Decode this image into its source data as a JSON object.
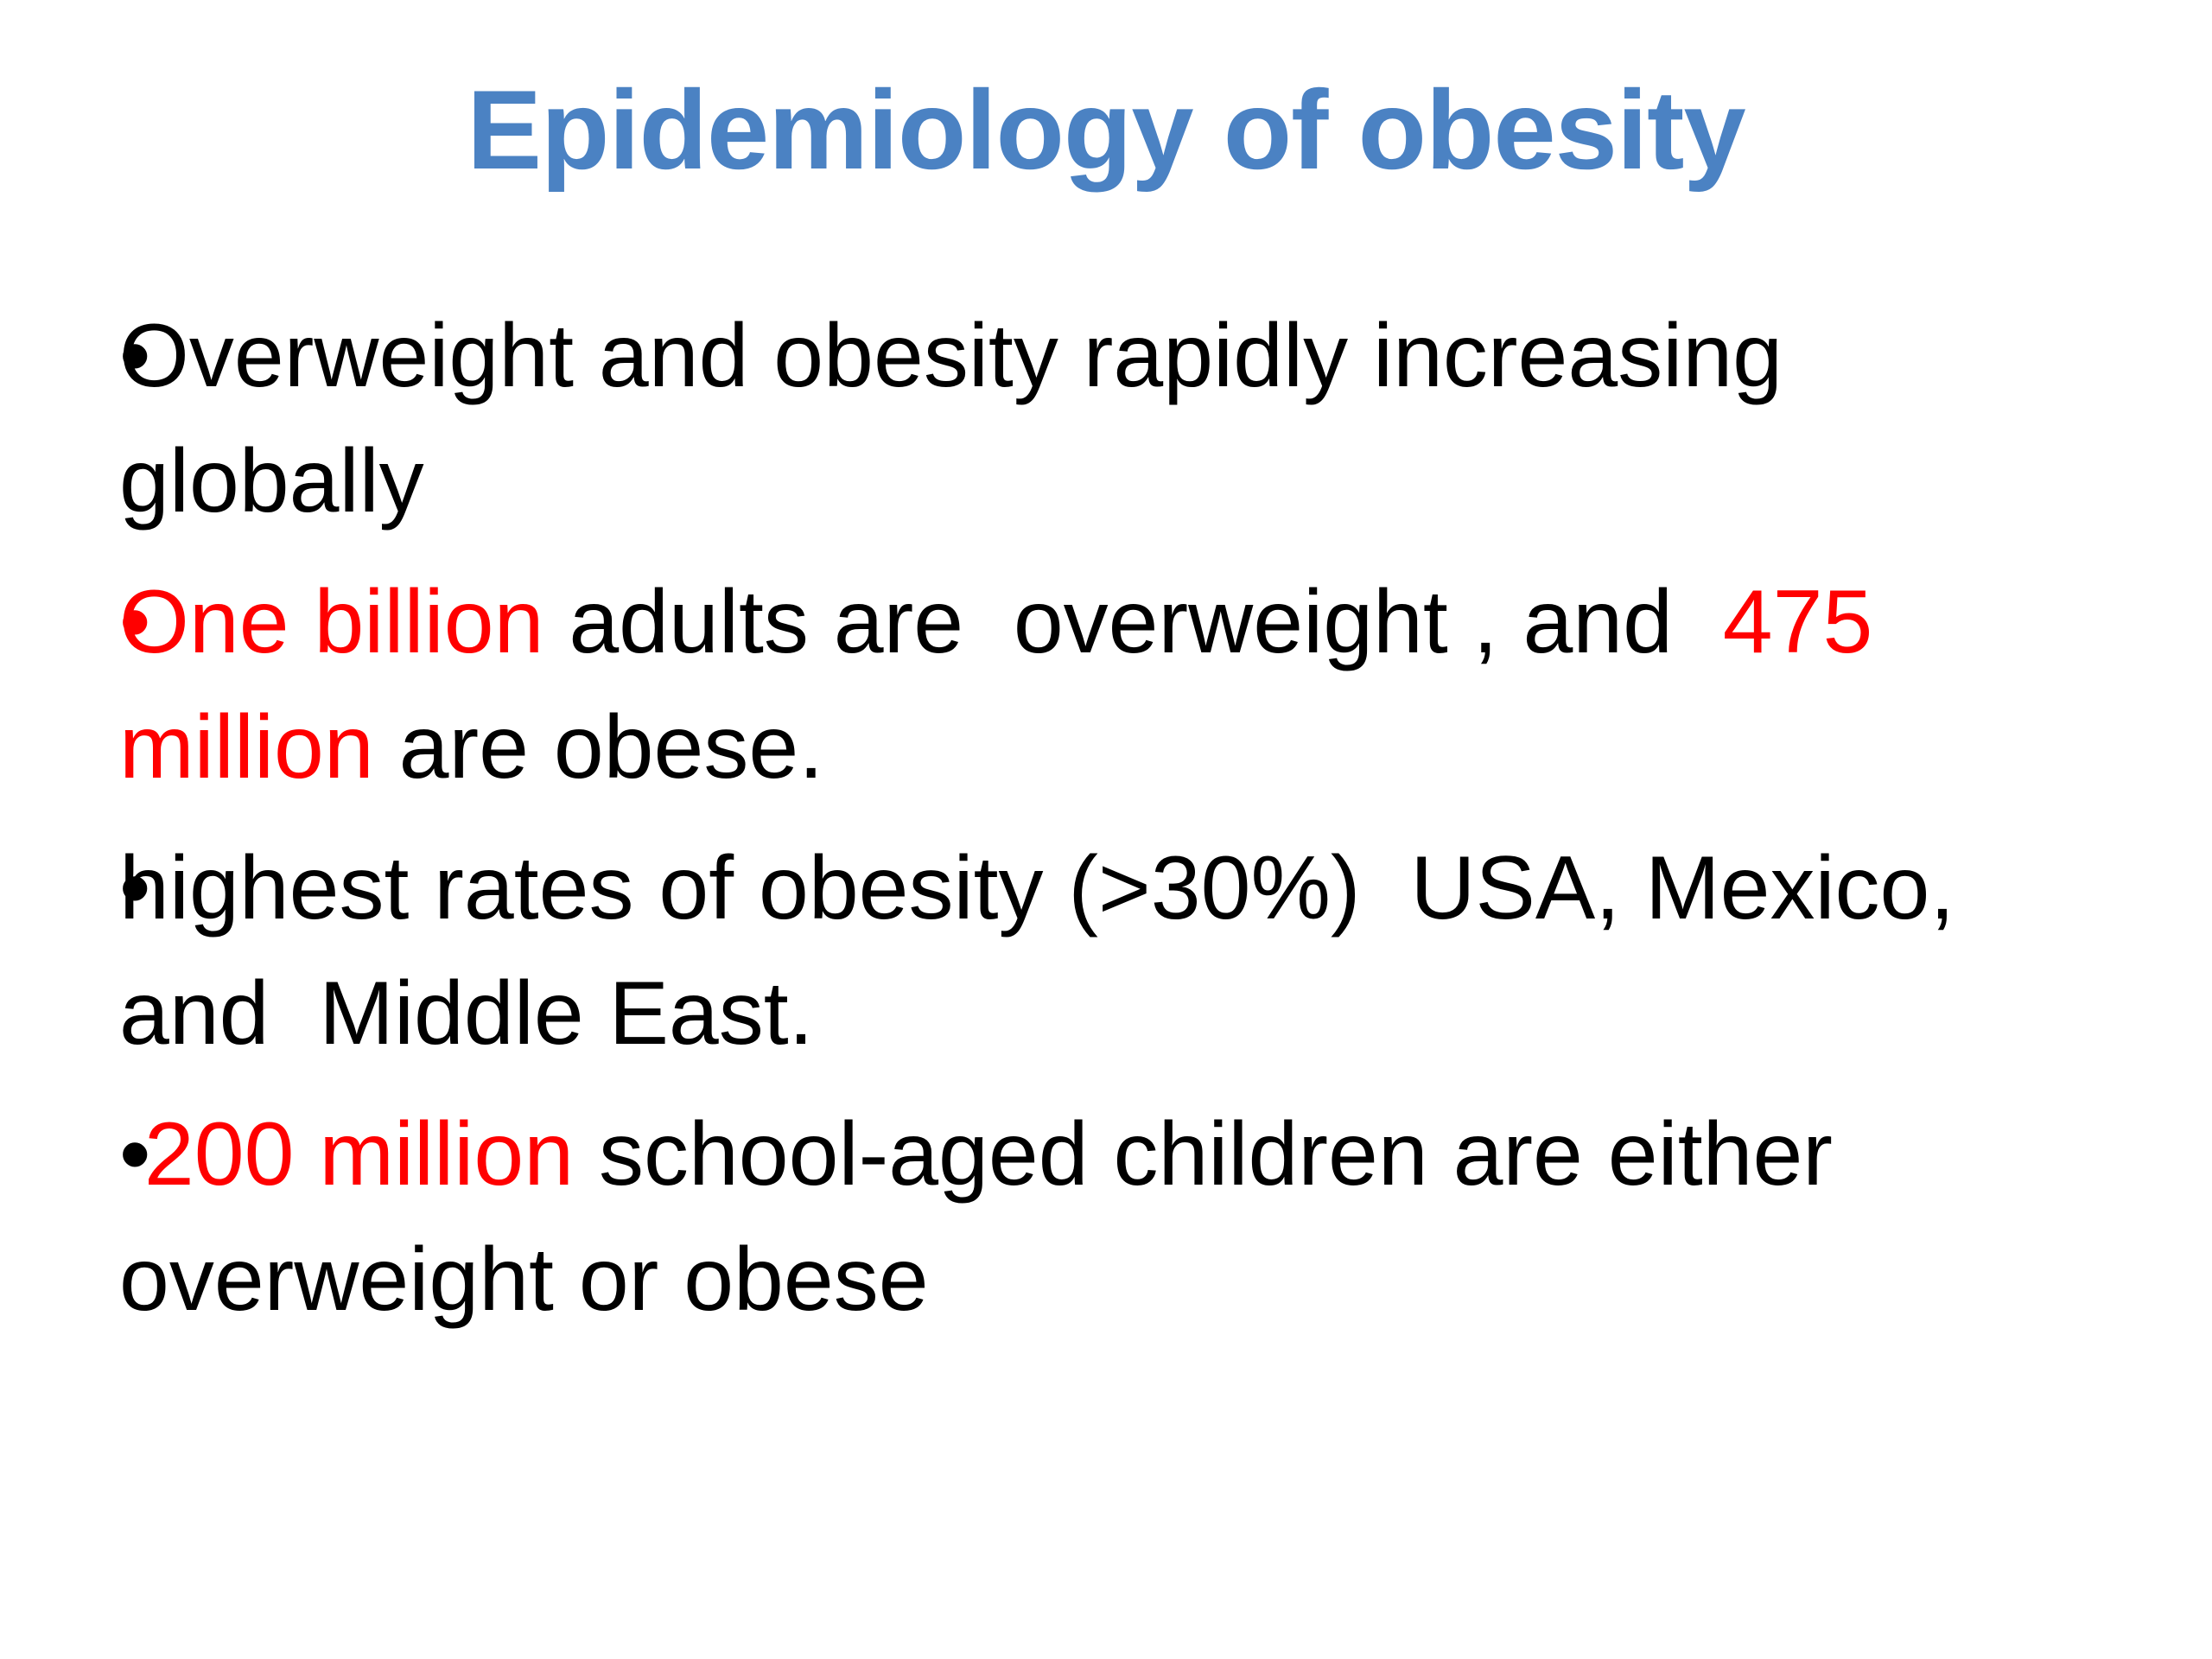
{
  "slide": {
    "title": "Epidemiology of obesity",
    "bullets": [
      {
        "marker": "•",
        "marker_emphasis": false,
        "lines": [
          [
            {
              "text": "Overweight and obesity rapidly increasing",
              "emphasis": false
            }
          ],
          [
            {
              "text": "globally",
              "emphasis": false
            }
          ]
        ]
      },
      {
        "marker": "•",
        "marker_emphasis": true,
        "lines": [
          [
            {
              "text": "One billion",
              "emphasis": true
            },
            {
              "text": " adults are  overweight , and  ",
              "emphasis": false
            },
            {
              "text": "475",
              "emphasis": true
            }
          ],
          [
            {
              "text": "million",
              "emphasis": true
            },
            {
              "text": " are obese.",
              "emphasis": false
            }
          ]
        ]
      },
      {
        "marker": "•",
        "marker_emphasis": false,
        "lines": [
          [
            {
              "text": "highest rates of obesity (>30%)  USA, Mexico,",
              "emphasis": false
            }
          ],
          [
            {
              "text": "and  Middle East.",
              "emphasis": false
            }
          ]
        ]
      },
      {
        "marker": "•",
        "marker_emphasis": false,
        "lines": [
          [
            {
              "text": " 200 million",
              "emphasis": true
            },
            {
              "text": " school-aged children are either",
              "emphasis": false
            }
          ],
          [
            {
              "text": "overweight or obese",
              "emphasis": false
            }
          ]
        ]
      }
    ]
  },
  "palette": {
    "background": "#ffffff",
    "title_blue": "#4b82c3",
    "emphasis_red": "#ff0000",
    "body_black": "#000000"
  }
}
